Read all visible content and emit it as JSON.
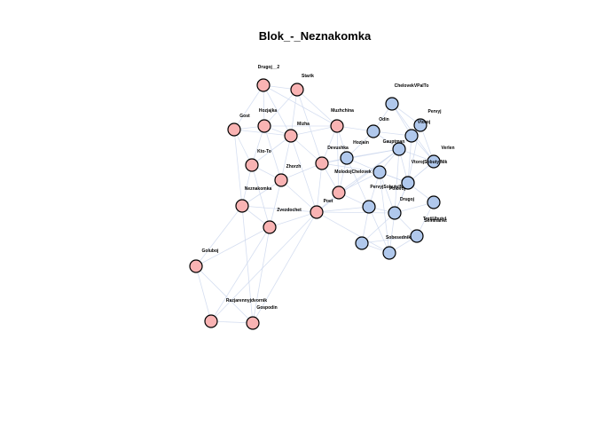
{
  "title": "Blok_-_Neznakomka",
  "colors": {
    "group_a": "#f9b3b3",
    "group_b": "#b0c8ec",
    "edge": "#c8d4ec"
  },
  "nodes": [
    {
      "id": "drugoj_2",
      "label": "Drugoj__2",
      "group": "a"
    },
    {
      "id": "starik",
      "label": "Starik",
      "group": "a"
    },
    {
      "id": "hozjajka",
      "label": "Hozjajka",
      "group": "a"
    },
    {
      "id": "gost",
      "label": "Gost",
      "group": "a"
    },
    {
      "id": "mizha",
      "label": "Mizha",
      "group": "a"
    },
    {
      "id": "muzhchina",
      "label": "Muzhchina",
      "group": "a"
    },
    {
      "id": "kto_to",
      "label": "Kto-To",
      "group": "a"
    },
    {
      "id": "zhorzh",
      "label": "Zhorzh",
      "group": "a"
    },
    {
      "id": "devushka",
      "label": "Devushka",
      "group": "a"
    },
    {
      "id": "neznakomka",
      "label": "Neznakomka",
      "group": "a"
    },
    {
      "id": "zvezdochet",
      "label": "Zvezdochet",
      "group": "a"
    },
    {
      "id": "poet",
      "label": "Poet",
      "group": "a"
    },
    {
      "id": "molodojchelovek",
      "label": "MolodojChelovek",
      "group": "a"
    },
    {
      "id": "goluboj",
      "label": "Goluboj",
      "group": "a"
    },
    {
      "id": "razjarennyjdvornik",
      "label": "Razjarennyjdvornik",
      "group": "a"
    },
    {
      "id": "gospodin",
      "label": "Gospodin",
      "group": "a"
    },
    {
      "id": "chelovekvpalto",
      "label": "ChelovekVPalTo",
      "group": "b"
    },
    {
      "id": "pervyj",
      "label": "Pervyj",
      "group": "b"
    },
    {
      "id": "odin",
      "label": "Odin",
      "group": "b"
    },
    {
      "id": "vtoroj",
      "label": "Vtoroj",
      "group": "b"
    },
    {
      "id": "hozjain",
      "label": "Hozjain",
      "group": "b"
    },
    {
      "id": "gauptman",
      "label": "Gauptman",
      "group": "b"
    },
    {
      "id": "verlen",
      "label": "Verlen",
      "group": "b"
    },
    {
      "id": "polovoj",
      "label": "Polovoj",
      "group": "b"
    },
    {
      "id": "pervyjsobutylnik",
      "label": "PervyjSobutylNik",
      "group": "b"
    },
    {
      "id": "vtorojsobutylnik",
      "label": "VtorojSobutylNik",
      "group": "b"
    },
    {
      "id": "drugoj",
      "label": "Drugoj",
      "group": "b"
    },
    {
      "id": "seminarist",
      "label": "Seminarist",
      "group": "b"
    },
    {
      "id": "sobesednik",
      "label": "Sobesednik",
      "group": "b"
    },
    {
      "id": "tretjibutyl",
      "label": "TretjUbutyl",
      "group": "b"
    },
    {
      "id": "b_extra1",
      "label": "",
      "group": "b"
    },
    {
      "id": "b_extra2",
      "label": "",
      "group": "b"
    }
  ],
  "edges": [
    [
      "drugoj_2",
      "starik"
    ],
    [
      "drugoj_2",
      "hozjajka"
    ],
    [
      "drugoj_2",
      "mizha"
    ],
    [
      "drugoj_2",
      "muzhchina"
    ],
    [
      "drugoj_2",
      "gost"
    ],
    [
      "starik",
      "hozjajka"
    ],
    [
      "starik",
      "mizha"
    ],
    [
      "starik",
      "muzhchina"
    ],
    [
      "starik",
      "devushka"
    ],
    [
      "hozjajka",
      "gost"
    ],
    [
      "hozjajka",
      "mizha"
    ],
    [
      "hozjajka",
      "kto_to"
    ],
    [
      "hozjajka",
      "zhorzh"
    ],
    [
      "hozjajka",
      "muzhchina"
    ],
    [
      "gost",
      "kto_to"
    ],
    [
      "gost",
      "mizha"
    ],
    [
      "gost",
      "neznakomka"
    ],
    [
      "mizha",
      "muzhchina"
    ],
    [
      "mizha",
      "devushka"
    ],
    [
      "mizha",
      "zhorzh"
    ],
    [
      "mizha",
      "kto_to"
    ],
    [
      "mizha",
      "poet"
    ],
    [
      "muzhchina",
      "devushka"
    ],
    [
      "muzhchina",
      "hozjain"
    ],
    [
      "muzhchina",
      "odin"
    ],
    [
      "muzhchina",
      "molodojchelovek"
    ],
    [
      "kto_to",
      "zhorzh"
    ],
    [
      "kto_to",
      "neznakomka"
    ],
    [
      "kto_to",
      "zvezdochet"
    ],
    [
      "zhorzh",
      "devushka"
    ],
    [
      "zhorzh",
      "neznakomka"
    ],
    [
      "zhorzh",
      "zvezdochet"
    ],
    [
      "zhorzh",
      "poet"
    ],
    [
      "devushka",
      "molodojchelovek"
    ],
    [
      "devushka",
      "poet"
    ],
    [
      "devushka",
      "hozjain"
    ],
    [
      "devushka",
      "gauptman"
    ],
    [
      "devushka",
      "pervyjsobutylnik"
    ],
    [
      "neznakomka",
      "zvezdochet"
    ],
    [
      "neznakomka",
      "poet"
    ],
    [
      "neznakomka",
      "goluboj"
    ],
    [
      "neznakomka",
      "gospodin"
    ],
    [
      "zvezdochet",
      "poet"
    ],
    [
      "zvezdochet",
      "goluboj"
    ],
    [
      "zvezdochet",
      "razjarennyjdvornik"
    ],
    [
      "zvezdochet",
      "gospodin"
    ],
    [
      "poet",
      "molodojchelovek"
    ],
    [
      "poet",
      "sobesednik"
    ],
    [
      "poet",
      "drugoj"
    ],
    [
      "poet",
      "gauptman"
    ],
    [
      "poet",
      "razjarennyjdvornik"
    ],
    [
      "poet",
      "gospodin"
    ],
    [
      "poet",
      "b_extra1"
    ],
    [
      "molodojchelovek",
      "hozjain"
    ],
    [
      "molodojchelovek",
      "gauptman"
    ],
    [
      "molodojchelovek",
      "pervyjsobutylnik"
    ],
    [
      "molodojchelovek",
      "b_extra1"
    ],
    [
      "goluboj",
      "razjarennyjdvornik"
    ],
    [
      "goluboj",
      "gospodin"
    ],
    [
      "razjarennyjdvornik",
      "gospodin"
    ],
    [
      "chelovekvpalto",
      "odin"
    ],
    [
      "chelovekvpalto",
      "pervyj"
    ],
    [
      "chelovekvpalto",
      "vtoroj"
    ],
    [
      "chelovekvpalto",
      "verlen"
    ],
    [
      "pervyj",
      "vtoroj"
    ],
    [
      "pervyj",
      "verlen"
    ],
    [
      "pervyj",
      "polovoj"
    ],
    [
      "odin",
      "vtoroj"
    ],
    [
      "odin",
      "hozjain"
    ],
    [
      "odin",
      "gauptman"
    ],
    [
      "vtoroj",
      "gauptman"
    ],
    [
      "vtoroj",
      "verlen"
    ],
    [
      "vtoroj",
      "polovoj"
    ],
    [
      "hozjain",
      "gauptman"
    ],
    [
      "hozjain",
      "pervyjsobutylnik"
    ],
    [
      "hozjain",
      "b_extra1"
    ],
    [
      "gauptman",
      "polovoj"
    ],
    [
      "gauptman",
      "pervyjsobutylnik"
    ],
    [
      "gauptman",
      "verlen"
    ],
    [
      "gauptman",
      "drugoj"
    ],
    [
      "verlen",
      "polovoj"
    ],
    [
      "verlen",
      "vtorojsobutylnik"
    ],
    [
      "polovoj",
      "pervyjsobutylnik"
    ],
    [
      "polovoj",
      "vtorojsobutylnik"
    ],
    [
      "polovoj",
      "drugoj"
    ],
    [
      "pervyjsobutylnik",
      "b_extra1"
    ],
    [
      "pervyjsobutylnik",
      "drugoj"
    ],
    [
      "pervyjsobutylnik",
      "sobesednik"
    ],
    [
      "pervyjsobutylnik",
      "vtorojsobutylnik"
    ],
    [
      "vtorojsobutylnik",
      "seminarist"
    ],
    [
      "vtorojsobutylnik",
      "drugoj"
    ],
    [
      "b_extra1",
      "drugoj"
    ],
    [
      "b_extra1",
      "sobesednik"
    ],
    [
      "b_extra1",
      "b_extra2"
    ],
    [
      "drugoj",
      "seminarist"
    ],
    [
      "drugoj",
      "tretjibutyl"
    ],
    [
      "drugoj",
      "sobesednik"
    ],
    [
      "drugoj",
      "b_extra2"
    ],
    [
      "seminarist",
      "tretjibutyl"
    ],
    [
      "sobesednik",
      "tretjibutyl"
    ],
    [
      "sobesednik",
      "b_extra2"
    ],
    [
      "tretjibutyl",
      "b_extra2"
    ]
  ]
}
